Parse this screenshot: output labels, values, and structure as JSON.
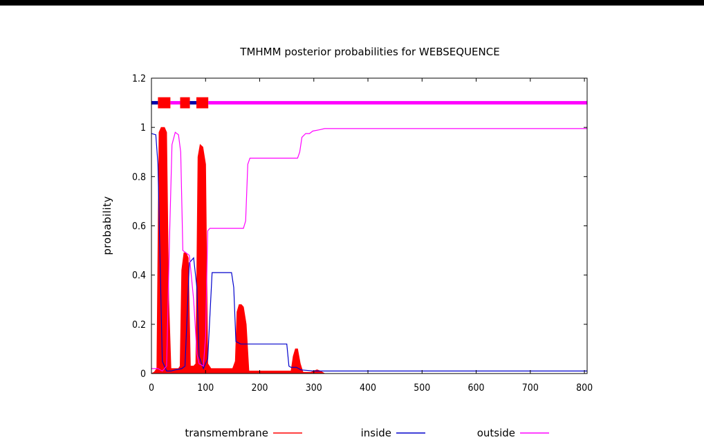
{
  "chart_data": {
    "type": "line",
    "title": "TMHMM posterior probabilities for WEBSEQUENCE",
    "xlabel": "",
    "ylabel": "probability",
    "xlim": [
      0,
      805
    ],
    "ylim": [
      0,
      1.2
    ],
    "xticks": [
      0,
      100,
      200,
      300,
      400,
      500,
      600,
      700,
      800
    ],
    "yticks": [
      0,
      0.2,
      0.4,
      0.6,
      0.8,
      1,
      1.2
    ],
    "ytick_labels": [
      "0",
      "0.2",
      "0.4",
      "0.6",
      "0.8",
      "1",
      "1.2"
    ],
    "grid": false,
    "legend_position": "bottom",
    "series": [
      {
        "name": "transmembrane",
        "color": "#ff0000",
        "style": "filled-impulses",
        "x": [
          0,
          5,
          10,
          14,
          18,
          24,
          28,
          32,
          36,
          42,
          50,
          53,
          56,
          60,
          64,
          68,
          72,
          78,
          82,
          86,
          90,
          95,
          100,
          104,
          110,
          150,
          155,
          158,
          162,
          166,
          170,
          175,
          180,
          258,
          262,
          266,
          270,
          275,
          280,
          295,
          300,
          306,
          312,
          320,
          805
        ],
        "y": [
          0,
          0.005,
          0.02,
          0.98,
          1.0,
          1.0,
          0.98,
          0.3,
          0.02,
          0.02,
          0.02,
          0.03,
          0.42,
          0.49,
          0.49,
          0.47,
          0.03,
          0.03,
          0.04,
          0.88,
          0.93,
          0.92,
          0.85,
          0.04,
          0.02,
          0.02,
          0.05,
          0.25,
          0.28,
          0.28,
          0.27,
          0.2,
          0.01,
          0.01,
          0.07,
          0.1,
          0.1,
          0.04,
          0.005,
          0.005,
          0.01,
          0.015,
          0.01,
          0.0,
          0.0
        ]
      },
      {
        "name": "inside",
        "color": "#0000cc",
        "x": [
          0,
          8,
          12,
          20,
          28,
          36,
          44,
          56,
          62,
          70,
          78,
          84,
          88,
          96,
          104,
          112,
          148,
          152,
          156,
          165,
          250,
          254,
          258,
          268,
          276,
          300,
          315,
          805
        ],
        "y": [
          0.975,
          0.97,
          0.85,
          0.05,
          0.01,
          0.01,
          0.015,
          0.02,
          0.03,
          0.45,
          0.47,
          0.35,
          0.07,
          0.02,
          0.06,
          0.41,
          0.41,
          0.35,
          0.13,
          0.12,
          0.12,
          0.03,
          0.025,
          0.025,
          0.015,
          0.01,
          0.01,
          0.01
        ]
      },
      {
        "name": "outside",
        "color": "#ff00ff",
        "x": [
          0,
          8,
          12,
          20,
          28,
          34,
          38,
          44,
          50,
          54,
          58,
          64,
          70,
          78,
          84,
          88,
          96,
          100,
          104,
          108,
          170,
          174,
          178,
          182,
          270,
          274,
          278,
          285,
          292,
          298,
          310,
          320,
          805
        ],
        "y": [
          0.02,
          0.02,
          0.02,
          0.01,
          0.03,
          0.6,
          0.93,
          0.98,
          0.97,
          0.9,
          0.5,
          0.49,
          0.48,
          0.3,
          0.08,
          0.04,
          0.03,
          0.15,
          0.58,
          0.59,
          0.59,
          0.62,
          0.85,
          0.875,
          0.875,
          0.9,
          0.96,
          0.975,
          0.975,
          0.985,
          0.99,
          0.995,
          0.995
        ]
      }
    ],
    "topology_bar": {
      "y": 1.1,
      "segments": [
        {
          "region": "inside",
          "color": "#0000aa",
          "from": 0,
          "to": 12
        },
        {
          "region": "transmembrane",
          "color": "#ff0000",
          "from": 12,
          "to": 35
        },
        {
          "region": "outside",
          "color": "#ff00ff",
          "from": 35,
          "to": 53
        },
        {
          "region": "transmembrane",
          "color": "#ff0000",
          "from": 53,
          "to": 71
        },
        {
          "region": "inside",
          "color": "#0000aa",
          "from": 71,
          "to": 83
        },
        {
          "region": "transmembrane",
          "color": "#ff0000",
          "from": 83,
          "to": 105
        },
        {
          "region": "outside",
          "color": "#ff00ff",
          "from": 105,
          "to": 805
        }
      ]
    },
    "legend": [
      {
        "name": "transmembrane",
        "color": "#ff0000"
      },
      {
        "name": "inside",
        "color": "#0000cc"
      },
      {
        "name": "outside",
        "color": "#ff00ff"
      }
    ]
  }
}
